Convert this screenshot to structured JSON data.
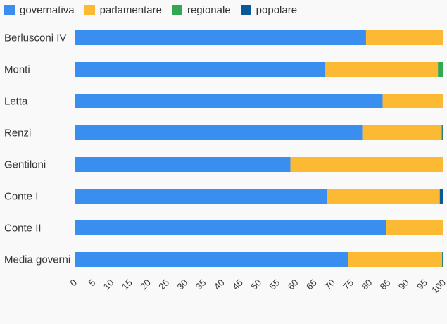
{
  "chart_data": {
    "type": "bar",
    "orientation": "horizontal",
    "stacked": true,
    "categories": [
      "Berlusconi IV",
      "Monti",
      "Letta",
      "Renzi",
      "Gentiloni",
      "Conte I",
      "Conte II",
      "Media governi"
    ],
    "series": [
      {
        "name": "governativa",
        "color": "#3a8ef0",
        "values": [
          79,
          68,
          83.5,
          78,
          58.5,
          68.5,
          84.5,
          74.2
        ]
      },
      {
        "name": "parlamentare",
        "color": "#fbb934",
        "values": [
          21,
          30.5,
          16.5,
          21.5,
          41.5,
          30.5,
          15.5,
          25.4
        ]
      },
      {
        "name": "regionale",
        "color": "#32a852",
        "values": [
          0,
          1.5,
          0,
          0.2,
          0,
          0,
          0,
          0.1
        ]
      },
      {
        "name": "popolare",
        "color": "#0a5a9a",
        "values": [
          0,
          0,
          0,
          0.3,
          0,
          1.0,
          0,
          0.3
        ]
      }
    ],
    "x_ticks": [
      "0",
      "5",
      "10",
      "15",
      "20",
      "25",
      "30",
      "35",
      "40",
      "45",
      "50",
      "55",
      "60",
      "65",
      "70",
      "75",
      "80",
      "85",
      "90",
      "95",
      "100"
    ],
    "xlim": [
      0,
      100
    ],
    "legend_position": "top-left",
    "grid": false
  }
}
